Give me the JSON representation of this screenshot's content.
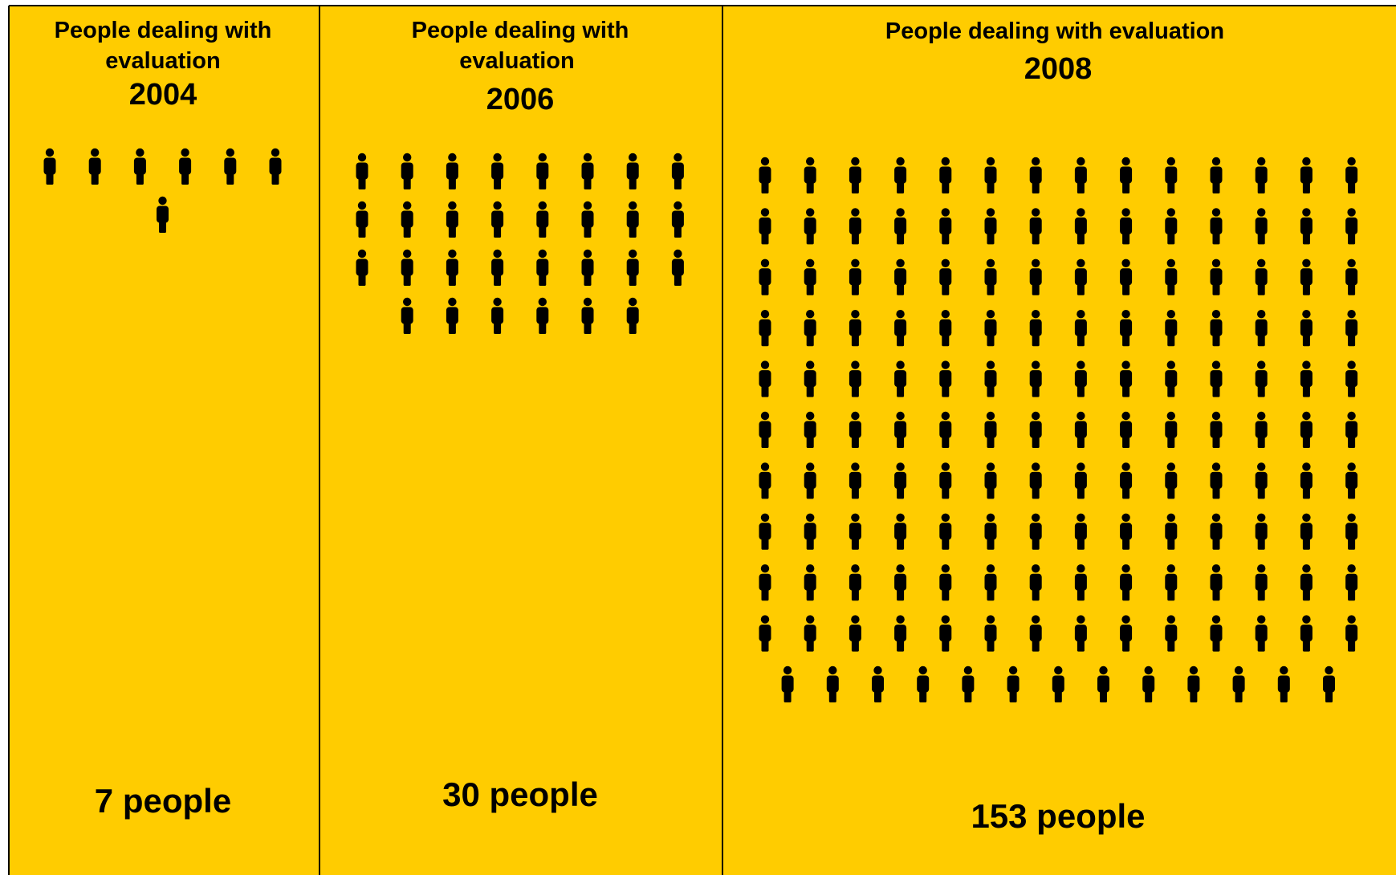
{
  "chart_data": {
    "type": "pictogram",
    "unit": "people",
    "background_color": "#FFCC00",
    "border_color": "#000000",
    "icon_color": "#000000",
    "icon": "person-icon",
    "panels": [
      {
        "title_lines": [
          "People dealing with",
          "evaluation"
        ],
        "year": "2004",
        "value": 7,
        "value_label": "7 people"
      },
      {
        "title_lines": [
          "People dealing with",
          "evaluation"
        ],
        "year": "2006",
        "value": 30,
        "value_label": "30 people"
      },
      {
        "title_lines": [
          "People dealing with evaluation"
        ],
        "year": "2008",
        "value": 153,
        "value_label": "153 people"
      }
    ]
  }
}
